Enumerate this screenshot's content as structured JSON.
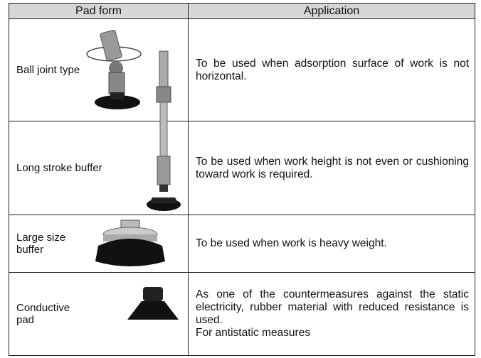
{
  "table": {
    "headers": [
      "Pad form",
      "Application"
    ],
    "rows": [
      {
        "pad_form": "Ball joint type",
        "application": [
          "To be used when adsorption surface of work is not horizontal."
        ]
      },
      {
        "pad_form": "Long stroke buffer",
        "application": [
          "To be used when work height is not even or cushioning toward work is required."
        ]
      },
      {
        "pad_form": "Large size buffer",
        "application": [
          "To be used when work is heavy weight."
        ]
      },
      {
        "pad_form": "Conductive pad",
        "application": [
          "As one of the countermeasures against the static electricity, rubber material with reduced resistance is used.",
          "For antistatic measures"
        ]
      }
    ]
  }
}
